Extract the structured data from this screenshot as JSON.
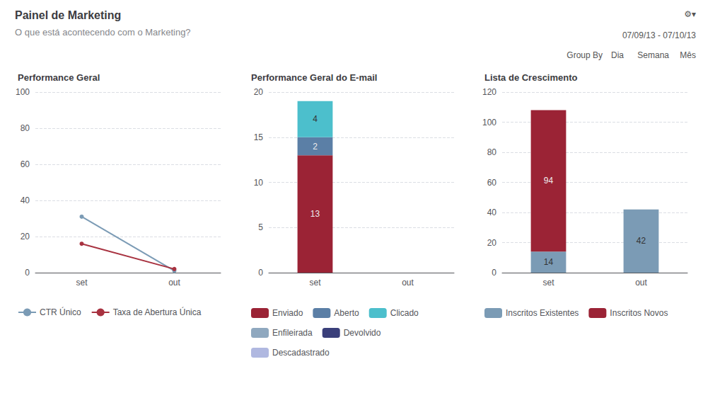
{
  "title": "Painel de Marketing",
  "subtitle": "O que está acontecendo com o Marketing?",
  "annotations": [
    "07/09/13 - 07/10/13",
    "Group By",
    "Dia",
    "Semana",
    "Mês",
    "⚙▾"
  ],
  "chart_data": [
    {
      "type": "line",
      "title": "Performance Geral",
      "categories": [
        "set",
        "out"
      ],
      "series": [
        {
          "name": "CTR Único",
          "color": "#7b9bb5",
          "values": [
            31,
            1
          ]
        },
        {
          "name": "Taxa de Abertura Única",
          "color": "#a83240",
          "values": [
            16,
            2
          ]
        }
      ],
      "ylim": [
        0,
        100
      ],
      "yticks": [
        0,
        20,
        40,
        60,
        80,
        100
      ],
      "grid": true,
      "legend": "bottom"
    },
    {
      "type": "bar",
      "title": "Performance Geral do E-mail",
      "categories": [
        "set",
        "out"
      ],
      "series": [
        {
          "name": "Enviado",
          "color": "#9b2335",
          "values": [
            13,
            0
          ]
        },
        {
          "name": "Aberto",
          "color": "#5b7fa6",
          "values": [
            2,
            0
          ]
        },
        {
          "name": "Clicado",
          "color": "#4cbfcc",
          "values": [
            4,
            0
          ]
        },
        {
          "name": "Enfileirada",
          "color": "#8fa8bf",
          "values": [
            0,
            0
          ]
        },
        {
          "name": "Devolvido",
          "color": "#3a3f7a",
          "values": [
            0,
            0
          ]
        },
        {
          "name": "Descadastrado",
          "color": "#b0b8e0",
          "values": [
            0,
            0
          ]
        }
      ],
      "ylim": [
        0,
        20
      ],
      "yticks": [
        0,
        5,
        10,
        15,
        20
      ],
      "stacked": true,
      "data_labels": true,
      "grid": true,
      "legend": "bottom"
    },
    {
      "type": "bar",
      "title": "Lista de Crescimento",
      "categories": [
        "set",
        "out"
      ],
      "series": [
        {
          "name": "Inscritos Existentes",
          "color": "#7b9bb5",
          "values": [
            14,
            42
          ]
        },
        {
          "name": "Inscritos Novos",
          "color": "#9b2335",
          "values": [
            94,
            0
          ]
        }
      ],
      "ylim": [
        0,
        120
      ],
      "yticks": [
        0,
        20,
        40,
        60,
        80,
        100,
        120
      ],
      "stacked": true,
      "data_labels": true,
      "grid": true,
      "legend": "bottom"
    }
  ]
}
